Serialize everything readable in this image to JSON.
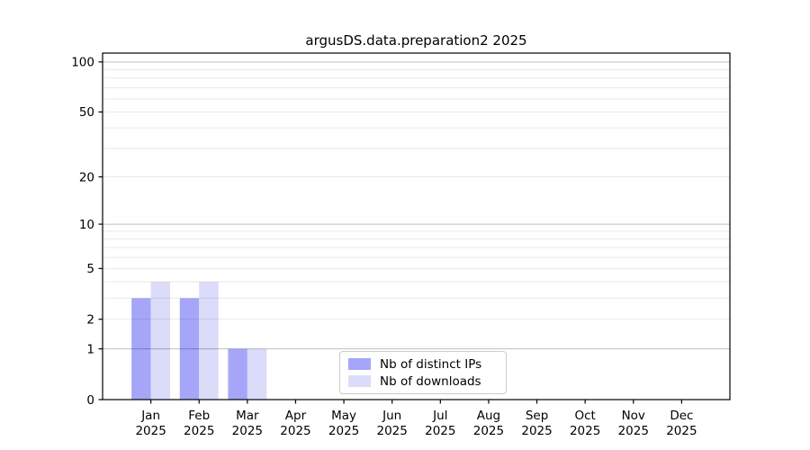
{
  "title": "argusDS.data.preparation2 2025",
  "legend": {
    "items": [
      {
        "label": "Nb of distinct IPs",
        "color": "#a6a6f8"
      },
      {
        "label": "Nb of downloads",
        "color": "#dbdbfa"
      }
    ],
    "position": "bottom-center-inside"
  },
  "chart_data": {
    "type": "bar",
    "title": "argusDS.data.preparation2 2025",
    "categories": [
      "Jan",
      "Feb",
      "Mar",
      "Apr",
      "May",
      "Jun",
      "Jul",
      "Aug",
      "Sep",
      "Oct",
      "Nov",
      "Dec"
    ],
    "category_sublabel": "2025",
    "series": [
      {
        "name": "Nb of distinct IPs",
        "color": "#a6a6f8",
        "values": [
          3,
          3,
          1,
          0,
          0,
          0,
          0,
          0,
          0,
          0,
          0,
          0
        ]
      },
      {
        "name": "Nb of downloads",
        "color": "#dbdbfa",
        "values": [
          4,
          4,
          1,
          0,
          0,
          0,
          0,
          0,
          0,
          0,
          0,
          0
        ]
      }
    ],
    "xlabel": "",
    "ylabel": "",
    "yscale": "log1p",
    "ylim": [
      0,
      113
    ],
    "yticks": [
      0,
      1,
      2,
      5,
      10,
      20,
      50,
      100
    ],
    "major_gridlines": [
      1,
      10,
      100
    ],
    "minor_gridlines": [
      2,
      3,
      4,
      5,
      6,
      7,
      8,
      9,
      20,
      30,
      40,
      50,
      60,
      70,
      80,
      90
    ],
    "grid": true,
    "legend_position": "lower center inside"
  },
  "colors": {
    "background": "#ffffff",
    "axes_frame": "#000000",
    "grid_major": "#c0c0c0",
    "grid_minor": "#e9e9e9",
    "tick_text": "#000000",
    "legend_border": "#cccccc"
  }
}
